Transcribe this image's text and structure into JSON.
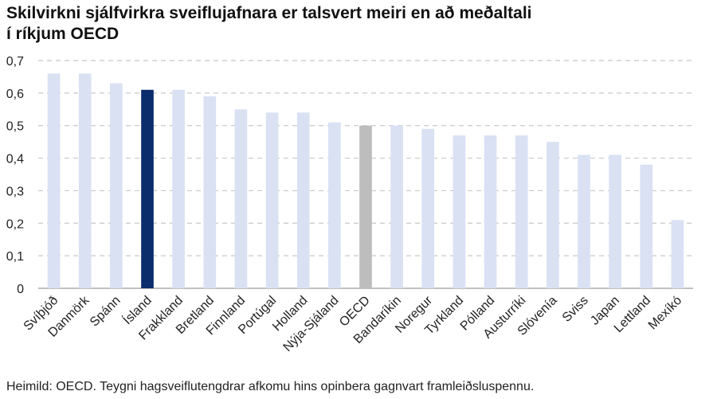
{
  "title_lines": [
    "Skilvirkni sjálfvirkra sveiflujafnara er talsvert meiri en að meðaltali",
    "í ríkjum OECD"
  ],
  "source": "Heimild: OECD. Teygni hagsveiflutengdrar afkomu hins opinbera gagnvart framleiðsluspennu.",
  "chart_data": {
    "type": "bar",
    "title": "Skilvirkni sjálfvirkra sveiflujafnara er talsvert meiri en að meðaltali í ríkjum OECD",
    "categories": [
      "Svíþjóð",
      "Danmörk",
      "Spánn",
      "Ísland",
      "Frakkland",
      "Bretland",
      "Finnland",
      "Portúgal",
      "Holland",
      "Nýja-Sjáland",
      "OECD",
      "Bandaríkin",
      "Noregur",
      "Tyrkland",
      "Pólland",
      "Austurríki",
      "Slóvenía",
      "Sviss",
      "Japan",
      "Lettland",
      "Mexíkó"
    ],
    "values": [
      0.66,
      0.66,
      0.63,
      0.61,
      0.61,
      0.59,
      0.55,
      0.54,
      0.54,
      0.51,
      0.5,
      0.5,
      0.49,
      0.47,
      0.47,
      0.47,
      0.45,
      0.41,
      0.41,
      0.38,
      0.21
    ],
    "highlight": {
      "Ísland": "#0b2d6b",
      "OECD": "#bdbdbd"
    },
    "bar_color": "#d9e1f3",
    "ylim": [
      0,
      0.7
    ],
    "yticks": [
      0,
      0.1,
      0.2,
      0.3,
      0.4,
      0.5,
      0.6,
      0.7
    ],
    "ytick_labels": [
      "0",
      "0,1",
      "0,2",
      "0,3",
      "0,4",
      "0,5",
      "0,6",
      "0,7"
    ],
    "grid": "horizontal dashed",
    "xlabel": "",
    "ylabel": ""
  }
}
